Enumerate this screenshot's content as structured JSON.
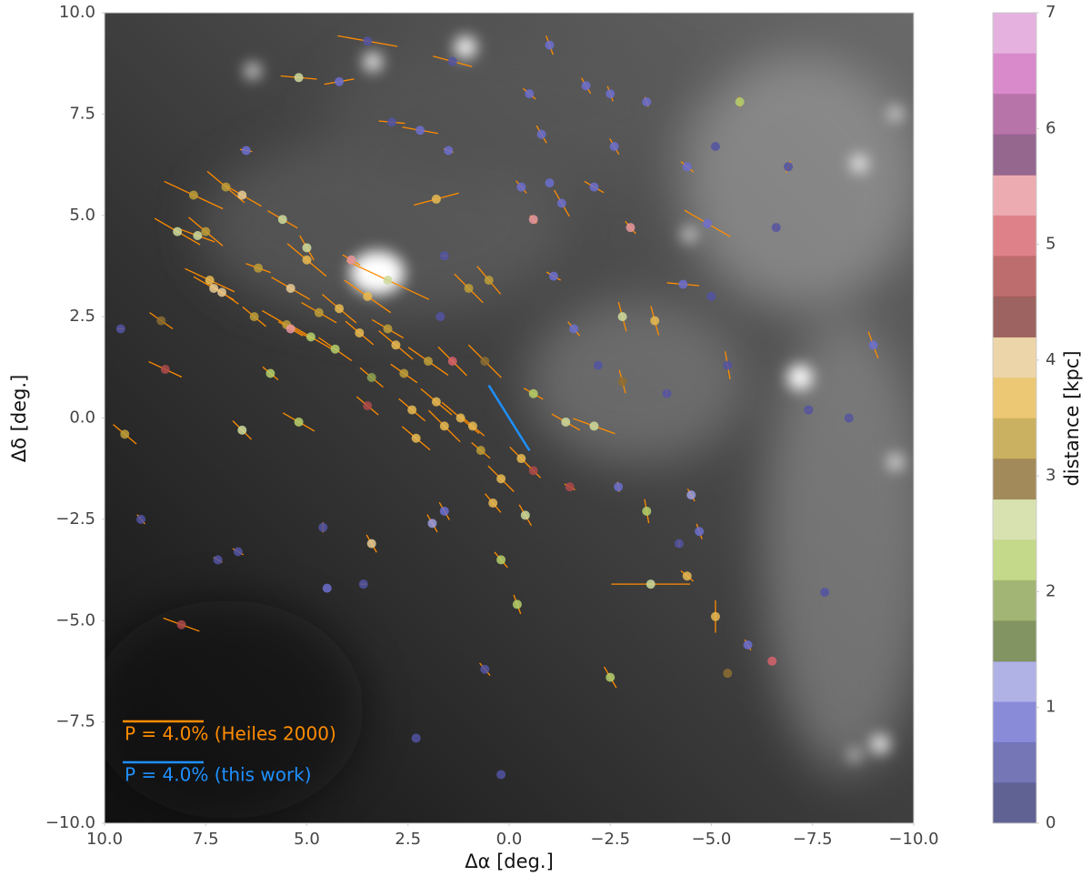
{
  "chart_data": {
    "type": "scatter",
    "xlabel": "Δα [deg.]",
    "ylabel": "Δδ [deg.]",
    "xlim": [
      10,
      -10
    ],
    "ylim": [
      -10,
      10
    ],
    "xticks": [
      {
        "value": 10,
        "label": "10.0"
      },
      7.5,
      {
        "value": 5,
        "label": "5.0"
      },
      2.5,
      {
        "value": 0,
        "label": "0.0"
      },
      {
        "value": -2.5,
        "label": "−2.5"
      },
      {
        "value": -5,
        "label": "−5.0"
      },
      {
        "value": -7.5,
        "label": "−7.5"
      },
      {
        "value": -10,
        "label": "−10.0"
      }
    ],
    "yticks": [
      {
        "value": -10,
        "label": "−10.0"
      },
      {
        "value": -7.5,
        "label": "−7.5"
      },
      {
        "value": -5,
        "label": "−5.0"
      },
      {
        "value": -2.5,
        "label": "−2.5"
      },
      {
        "value": 0,
        "label": "0.0"
      },
      2.5,
      {
        "value": 5,
        "label": "5.0"
      },
      7.5,
      {
        "value": 10,
        "label": "10.0"
      }
    ],
    "grid": false,
    "legend": "lower left",
    "colorbar": {
      "label": "distance [kpc]",
      "clim": [
        0,
        7
      ],
      "ticks": [
        0,
        1,
        2,
        3,
        4,
        5,
        6,
        7
      ],
      "colormap": [
        "#393b79",
        "#5254a3",
        "#6b6ecf",
        "#9c9ede",
        "#637939",
        "#8ca252",
        "#b5cf6b",
        "#cedb9c",
        "#8c6d31",
        "#bd9e39",
        "#e7ba52",
        "#e7cb94",
        "#843c39",
        "#ad494a",
        "#d6616b",
        "#e7969c",
        "#7b4173",
        "#a55194",
        "#ce6dbd",
        "#de9ed6"
      ]
    },
    "series": [
      {
        "name": "P = 4.0% (Heiles 2000)",
        "color": "#ff8c00",
        "scale_bar": 4.0,
        "x": [
          9.6,
          9.5,
          9.1,
          8.6,
          8.5,
          8.2,
          8.1,
          7.8,
          7.7,
          7.5,
          7.4,
          7.3,
          7.1,
          7.2,
          7.0,
          6.6,
          6.6,
          6.7,
          6.3,
          6.2,
          5.9,
          5.6,
          5.4,
          5.5,
          5.4,
          5.2,
          5.0,
          5.0,
          4.9,
          4.7,
          4.3,
          4.2,
          3.9,
          3.7,
          3.5,
          3.4,
          3.5,
          3.0,
          3.0,
          2.8,
          2.6,
          2.4,
          2.3,
          2.0,
          1.8,
          1.6,
          1.4,
          1.2,
          1.0,
          0.9,
          0.6,
          0.7,
          0.5,
          0.2,
          -0.3,
          -0.6,
          -0.6,
          0.4,
          -0.4,
          0.2,
          -0.2,
          -1.4,
          -2.1,
          -2.8,
          -2.8,
          -3.6,
          -3.4,
          -3.5,
          -4.4,
          -5.1,
          -5.4,
          -6.5,
          -2.5,
          -1.5,
          0.6,
          1.6,
          1.9,
          3.4,
          4.6,
          4.5,
          3.6,
          2.3,
          0.2,
          -2.7,
          -4.2,
          -4.5,
          -4.7,
          -5.9,
          -7.8,
          -7.4,
          -8.4,
          -9.0,
          -5.4,
          -5.0,
          -4.3,
          -3.9,
          -2.2,
          -2.5,
          -2.6,
          -3.4,
          -4.4,
          -5.1,
          -5.7,
          -6.9,
          -6.6,
          -4.9,
          -3.0,
          -2.1,
          -1.3,
          -0.8,
          -0.5,
          -1.0,
          -1.9,
          -0.3,
          -1.0,
          -0.6,
          1.5,
          1.6,
          1.7,
          -1.1,
          -1.6,
          2.9,
          2.2,
          3.5,
          1.4,
          4.2,
          6.5,
          1.8,
          5.2
        ],
        "y": [
          2.2,
          -0.4,
          -2.5,
          2.4,
          1.2,
          4.6,
          -5.1,
          5.5,
          4.5,
          4.6,
          3.4,
          3.2,
          3.1,
          -3.5,
          5.7,
          5.5,
          -0.3,
          -3.3,
          2.5,
          3.7,
          1.1,
          4.9,
          3.2,
          2.3,
          2.2,
          -0.1,
          4.2,
          3.9,
          2.0,
          2.6,
          1.7,
          2.7,
          3.9,
          2.1,
          3.0,
          1.0,
          0.3,
          3.4,
          2.2,
          1.8,
          1.1,
          0.2,
          -0.5,
          1.4,
          0.4,
          -0.2,
          1.4,
          0.0,
          3.2,
          -0.2,
          1.4,
          -0.8,
          3.4,
          -1.5,
          -1.0,
          0.6,
          -1.3,
          -2.1,
          -2.4,
          -3.5,
          -4.6,
          -0.1,
          -0.2,
          0.9,
          2.5,
          2.4,
          -2.3,
          -4.1,
          -3.9,
          -4.9,
          -6.3,
          -6.0,
          -6.4,
          -1.7,
          -6.2,
          -2.3,
          -2.6,
          -3.1,
          -2.7,
          -4.2,
          -4.1,
          -7.9,
          -8.8,
          -1.7,
          -3.1,
          -1.9,
          -2.8,
          -5.6,
          -4.3,
          0.2,
          0.0,
          1.8,
          1.3,
          3.0,
          3.3,
          0.6,
          1.3,
          8.0,
          6.7,
          7.8,
          6.2,
          6.7,
          7.8,
          6.2,
          4.7,
          4.8,
          4.7,
          5.7,
          5.3,
          7.0,
          8.0,
          9.2,
          8.2,
          5.7,
          5.8,
          4.9,
          6.6,
          4.0,
          2.5,
          3.5,
          2.2,
          7.3,
          7.1,
          9.3,
          8.8,
          8.3,
          6.6,
          5.4,
          8.4
        ],
        "distance": [
          0.5,
          3.3,
          0.5,
          3.1,
          4.6,
          2.5,
          4.6,
          3.3,
          2.7,
          3.3,
          3.6,
          3.9,
          4.0,
          0.5,
          3.4,
          4.0,
          2.8,
          0.6,
          3.3,
          3.3,
          2.2,
          2.7,
          4.0,
          3.3,
          5.3,
          2.3,
          2.5,
          3.6,
          2.3,
          3.4,
          2.2,
          3.5,
          5.4,
          3.8,
          3.5,
          1.8,
          4.6,
          2.6,
          3.4,
          3.7,
          3.2,
          3.5,
          3.5,
          3.2,
          3.8,
          3.7,
          5.1,
          3.7,
          3.4,
          3.6,
          3.0,
          3.4,
          3.4,
          3.5,
          3.5,
          2.2,
          4.7,
          3.6,
          2.5,
          2.2,
          2.3,
          2.7,
          2.7,
          2.9,
          2.7,
          3.8,
          2.4,
          2.6,
          3.7,
          3.6,
          2.9,
          5.1,
          2.4,
          4.6,
          0.6,
          0.9,
          1.1,
          3.9,
          0.5,
          0.9,
          0.5,
          0.5,
          0.7,
          0.8,
          0.5,
          1.3,
          0.8,
          0.8,
          0.5,
          0.5,
          0.5,
          0.8,
          0.5,
          0.5,
          0.8,
          0.7,
          0.5,
          1.0,
          0.9,
          1.0,
          0.9,
          0.5,
          2.3,
          0.7,
          0.7,
          0.9,
          5.6,
          0.9,
          0.9,
          0.9,
          0.9,
          0.9,
          0.9,
          1.0,
          1.0,
          5.5,
          0.9,
          0.5,
          0.5,
          0.8,
          0.8,
          0.7,
          0.9,
          0.5,
          0.5,
          0.9,
          0.9,
          3.5,
          2.7
        ],
        "p": [
          0.3,
          1.5,
          0.6,
          1.4,
          1.8,
          2.6,
          1.9,
          3.2,
          1.8,
          2.2,
          2.7,
          2.3,
          2.0,
          0.5,
          2.4,
          2.2,
          1.3,
          0.6,
          1.5,
          1.3,
          1.0,
          1.7,
          2.2,
          2.8,
          1.4,
          1.8,
          1.4,
          2.5,
          2.4,
          2.0,
          2.0,
          2.2,
          1.0,
          1.8,
          2.8,
          1.5,
          1.4,
          4.5,
          1.8,
          2.2,
          1.6,
          1.7,
          1.8,
          2.4,
          2.0,
          2.2,
          2.0,
          2.4,
          2.0,
          1.5,
          2.3,
          1.2,
          1.8,
          1.8,
          1.6,
          1.1,
          1.0,
          1.2,
          1.2,
          1.0,
          1.0,
          1.6,
          2.2,
          1.2,
          1.5,
          1.5,
          1.2,
          3.9,
          0.8,
          1.6,
          null,
          null,
          1.2,
          0.6,
          0.8,
          1.0,
          1.0,
          1.0,
          0.5,
          null,
          0.3,
          null,
          null,
          0.5,
          0.3,
          0.7,
          0.8,
          0.6,
          null,
          0.3,
          0.3,
          1.4,
          1.4,
          null,
          1.6,
          0.4,
          null,
          0.8,
          0.9,
          0.5,
          0.8,
          null,
          0.5,
          0.6,
          0.4,
          2.6,
          0.8,
          1.1,
          1.5,
          1.0,
          0.8,
          1.0,
          0.9,
          0.8,
          null,
          0.5,
          0.5,
          0.3,
          null,
          0.8,
          0.9,
          1.3,
          1.8,
          3.0,
          2.0,
          1.5,
          0.6,
          2.3,
          1.8
        ],
        "angle": [
          0,
          -40,
          -50,
          -35,
          -25,
          -30,
          -20,
          -25,
          -20,
          -40,
          -25,
          -30,
          -35,
          -30,
          -40,
          -30,
          -45,
          -30,
          -40,
          -20,
          -40,
          -30,
          -30,
          -30,
          -30,
          -30,
          -60,
          -40,
          -30,
          -30,
          -35,
          -40,
          -30,
          -40,
          -35,
          -40,
          -40,
          -25,
          -30,
          -40,
          -35,
          -40,
          -40,
          -35,
          -40,
          -45,
          -45,
          -40,
          -45,
          -40,
          -45,
          -40,
          -50,
          -45,
          -45,
          -30,
          -45,
          -50,
          -60,
          -50,
          -70,
          -30,
          -20,
          -75,
          -75,
          -75,
          -80,
          0,
          -40,
          -90,
          null,
          null,
          -60,
          -30,
          -50,
          -60,
          -60,
          -60,
          90,
          null,
          0,
          null,
          null,
          -80,
          90,
          -60,
          -70,
          -60,
          null,
          0,
          0,
          -70,
          -80,
          null,
          -5,
          90,
          null,
          -70,
          -60,
          -70,
          -40,
          null,
          -80,
          70,
          80,
          -30,
          -50,
          -30,
          -60,
          -60,
          -40,
          -70,
          -60,
          -50,
          null,
          -50,
          -20,
          0,
          null,
          -30,
          -50,
          -5,
          -10,
          -10,
          -15,
          10,
          -10,
          15,
          -5
        ]
      },
      {
        "name": "P = 4.0% (this work)",
        "color": "#1e90ff",
        "scale_bar": 4.0,
        "x": [
          0.0
        ],
        "y": [
          0.0
        ],
        "p": [
          3.8
        ],
        "angle": [
          -58
        ]
      }
    ]
  }
}
